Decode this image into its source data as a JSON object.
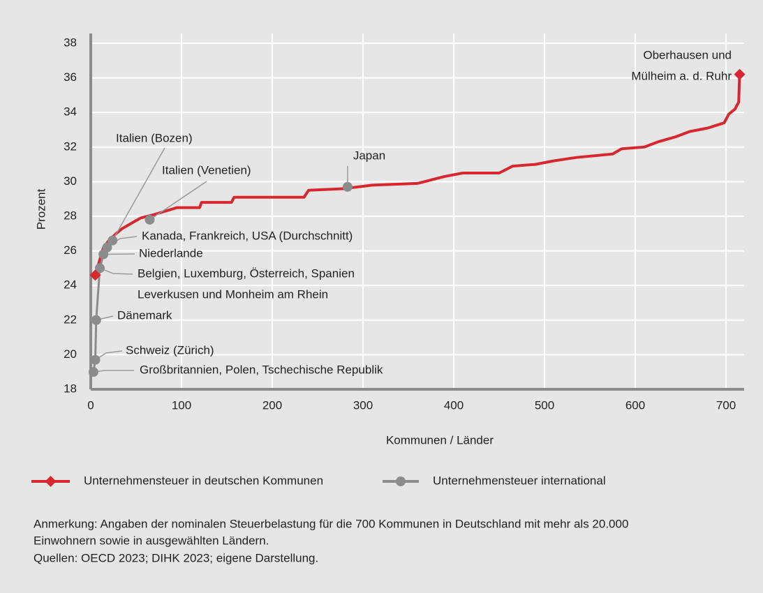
{
  "chart_data": {
    "type": "line",
    "xlabel": "Kommunen / Länder",
    "ylabel": "Prozent",
    "xlim": [
      0,
      720
    ],
    "ylim": [
      18,
      38
    ],
    "xticks": [
      0,
      100,
      200,
      300,
      400,
      500,
      600,
      700
    ],
    "yticks": [
      18,
      20,
      22,
      24,
      26,
      28,
      30,
      32,
      34,
      36,
      38
    ],
    "grid": true,
    "series": [
      {
        "name": "Unternehmensteuer in deutschen Kommunen",
        "color": "#d7282f",
        "x": [
          5,
          14,
          20,
          28,
          35,
          45,
          55,
          70,
          95,
          120,
          122,
          155,
          158,
          235,
          240,
          280,
          310,
          360,
          375,
          390,
          410,
          450,
          465,
          490,
          510,
          535,
          575,
          585,
          610,
          625,
          645,
          660,
          680,
          698,
          703,
          710,
          714,
          715
        ],
        "values": [
          24.6,
          26.2,
          26.6,
          27.0,
          27.3,
          27.6,
          27.9,
          28.1,
          28.5,
          28.5,
          28.8,
          28.8,
          29.1,
          29.1,
          29.5,
          29.6,
          29.8,
          29.9,
          30.1,
          30.3,
          30.5,
          30.5,
          30.9,
          31.0,
          31.2,
          31.4,
          31.6,
          31.9,
          32.0,
          32.3,
          32.6,
          32.9,
          33.1,
          33.4,
          33.9,
          34.2,
          34.6,
          36.2
        ]
      },
      {
        "name": "Unternehmensteuer international",
        "color": "#8c8c8c",
        "x": [
          3,
          5,
          6,
          10,
          14,
          18,
          24,
          65,
          283
        ],
        "values": [
          19.0,
          19.7,
          22.0,
          25.0,
          25.8,
          26.2,
          26.6,
          27.8,
          29.7
        ],
        "labels": [
          "Großbritannien, Polen, Tschechische Republik",
          "Schweiz (Zürich)",
          "Dänemark",
          "Belgien, Luxemburg, Österreich, Spanien",
          "Niederlande",
          "Kanada, Frankreich, USA (Durchschnitt)",
          "Italien (Bozen)",
          "Italien (Venetien)",
          "Japan"
        ]
      }
    ],
    "annotations": [
      {
        "text": [
          "Leverkusen und Monheim am Rhein"
        ],
        "x": 5,
        "y": 24.6
      },
      {
        "text": [
          "Oberhausen und",
          "Mülheim a. d. Ruhr"
        ],
        "x": 715,
        "y": 36.2
      }
    ],
    "note": [
      "Anmerkung: Angaben der nominalen Steuerbelastung für die 700 Kommunen in Deutschland mit mehr als 20.000",
      "Einwohnern sowie in ausgewählten Ländern."
    ],
    "source": "Quellen: OECD 2023; DIHK 2023; eigene Darstellung."
  }
}
